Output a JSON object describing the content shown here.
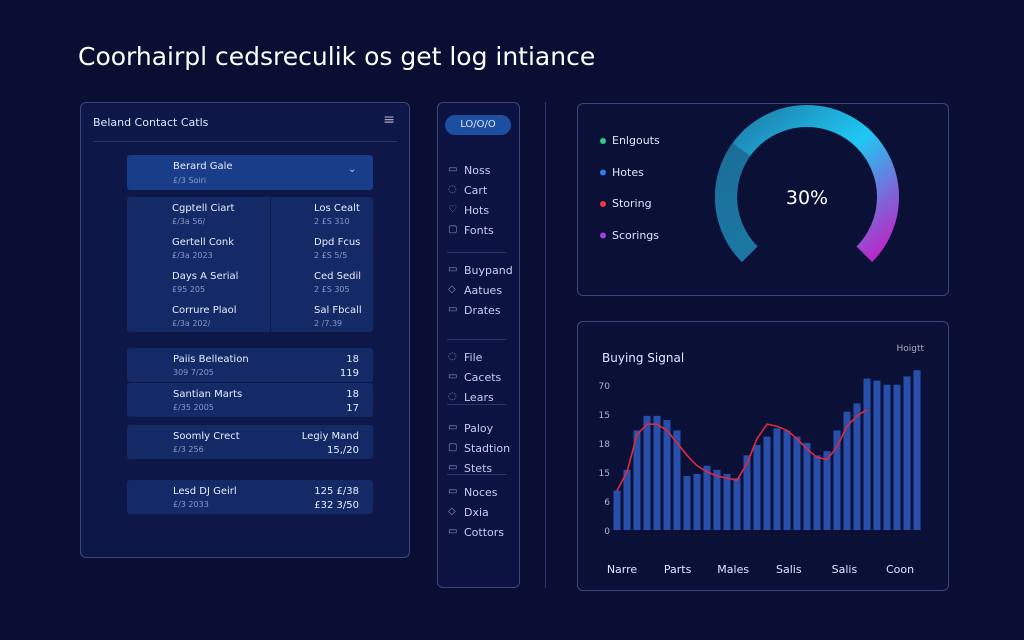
{
  "header": {
    "title": "Coorhairpl cedsreculik os get log intiance"
  },
  "contacts": {
    "title": "Beland Contact Catls",
    "featured": {
      "name": "Berard Gale",
      "detail": "£/3 Soiri"
    },
    "grid": [
      {
        "name": "Cgptell Ciart",
        "detail": "£/3a 56/"
      },
      {
        "name": "Los Cealt",
        "detail": "2 £S 310"
      },
      {
        "name": "Gertell Conk",
        "detail": "£/3a 2023"
      },
      {
        "name": "Dpd Fcus",
        "detail": "2 £S 5/5"
      },
      {
        "name": "Days A Serial",
        "detail": "£95 205"
      },
      {
        "name": "Ced Sedil",
        "detail": "2 £S 305"
      },
      {
        "name": "Corrure Plaol",
        "detail": "£/3a 202/"
      },
      {
        "name": "Sal Fbcall",
        "detail": "2 /7.39"
      }
    ],
    "list": [
      {
        "name": "Paiis Belleation",
        "detail": "309 7/205",
        "value": "18",
        "sub": "119"
      },
      {
        "name": "Santian Marts",
        "detail": "£/35 2005",
        "value": "18",
        "sub": "17"
      },
      {
        "name": "Soomly Crect",
        "detail": "£/3 256",
        "value": "Legiy Mand",
        "sub": "15,/20"
      },
      {
        "name": "Lesd DJ Geirl",
        "detail": "£/3 2033",
        "value": "125 £/38",
        "sub": "£32 3/50"
      }
    ]
  },
  "nav": {
    "button": "LO/O/O",
    "groups": [
      [
        "Noss",
        "Cart",
        "Hots",
        "Fonts"
      ],
      [
        "Buypand",
        "Aatues",
        "Drates"
      ],
      [
        "File",
        "Cacets",
        "Lears"
      ],
      [
        "Paloy",
        "Stadtion",
        "Stets"
      ],
      [
        "Noces",
        "Dxia",
        "Cottors"
      ]
    ]
  },
  "gauge": {
    "legend": [
      {
        "name": "Enlgouts",
        "color": "#2ecc8f"
      },
      {
        "name": "Hotes",
        "color": "#2e7bf0"
      },
      {
        "name": "Storing",
        "color": "#e83a3a"
      },
      {
        "name": "Scorings",
        "color": "#a040e0"
      }
    ],
    "value": 30,
    "value_label": "30%"
  },
  "buying_signal": {
    "type": "bar",
    "title": "Buying Signal",
    "corner_label": "Hoigtt",
    "y_axis_labels": [
      "70",
      "15",
      "18",
      "15",
      "6",
      "0"
    ],
    "x_axis_labels": [
      "Narre",
      "Parts",
      "Males",
      "Salis",
      "Salis",
      "Coon"
    ],
    "ylim": [
      0,
      80
    ],
    "bar_color": "#2a56b8",
    "line_color": "#e02a3a",
    "values": [
      19,
      29,
      48,
      55,
      55,
      53,
      48,
      26,
      27,
      31,
      29,
      27,
      25,
      36,
      41,
      45,
      49,
      48,
      45,
      42,
      36,
      38,
      48,
      57,
      61,
      73,
      72,
      70,
      70,
      74,
      77
    ],
    "line": [
      19,
      28,
      46,
      51,
      51,
      48,
      42,
      36,
      31,
      28,
      26,
      25,
      24,
      32,
      44,
      51,
      50,
      48,
      44,
      39,
      35,
      34,
      40,
      50,
      55,
      58,
      null,
      null,
      null,
      null,
      null
    ]
  }
}
